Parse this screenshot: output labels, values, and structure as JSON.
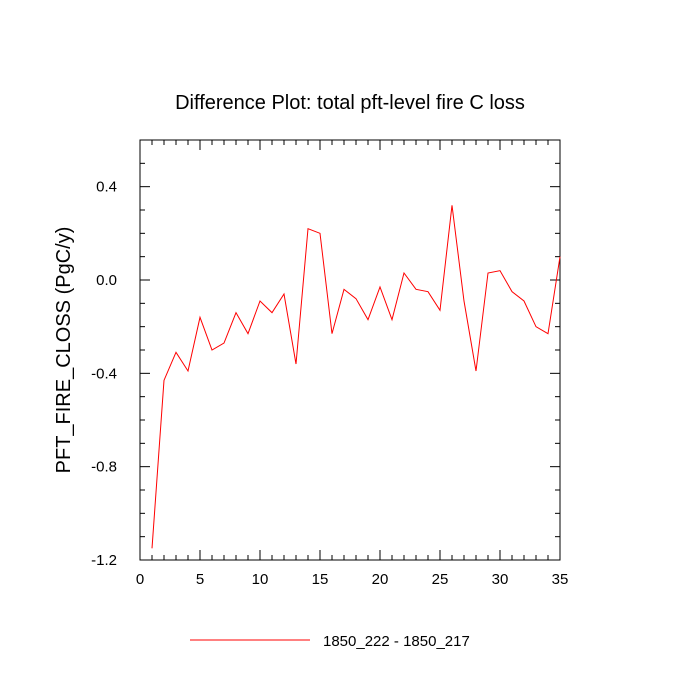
{
  "chart_data": {
    "type": "line",
    "title": "Difference Plot: total pft-level fire C loss",
    "xlabel": "",
    "ylabel": "PFT_FIRE_CLOSS  (PgC/y)",
    "xlim": [
      0,
      35
    ],
    "ylim": [
      -1.2,
      0.6
    ],
    "xticks": [
      0,
      5,
      10,
      15,
      20,
      25,
      30,
      35
    ],
    "xtick_labels": [
      "0",
      "5",
      "10",
      "15",
      "20",
      "25",
      "30",
      "35"
    ],
    "yticks": [
      -1.2,
      -0.8,
      -0.4,
      0.0,
      0.4
    ],
    "ytick_labels": [
      "-1.2",
      "-0.8",
      "-0.4",
      "0.0",
      "0.4"
    ],
    "grid": false,
    "legend_position": "bottom",
    "series": [
      {
        "name": "1850_222 - 1850_217",
        "color": "#ff0000",
        "x": [
          1,
          2,
          3,
          4,
          5,
          6,
          7,
          8,
          9,
          10,
          11,
          12,
          13,
          14,
          15,
          16,
          17,
          18,
          19,
          20,
          21,
          22,
          23,
          24,
          25,
          26,
          27,
          28,
          29,
          30,
          31,
          32,
          33,
          34,
          35
        ],
        "y": [
          -1.15,
          -0.43,
          -0.31,
          -0.39,
          -0.16,
          -0.3,
          -0.27,
          -0.14,
          -0.23,
          -0.09,
          -0.14,
          -0.06,
          -0.36,
          0.22,
          0.2,
          -0.23,
          -0.04,
          -0.08,
          -0.17,
          -0.03,
          -0.17,
          0.03,
          -0.04,
          -0.05,
          -0.13,
          0.32,
          -0.09,
          -0.39,
          0.03,
          0.04,
          -0.05,
          -0.09,
          -0.2,
          -0.23,
          0.1
        ]
      }
    ]
  }
}
